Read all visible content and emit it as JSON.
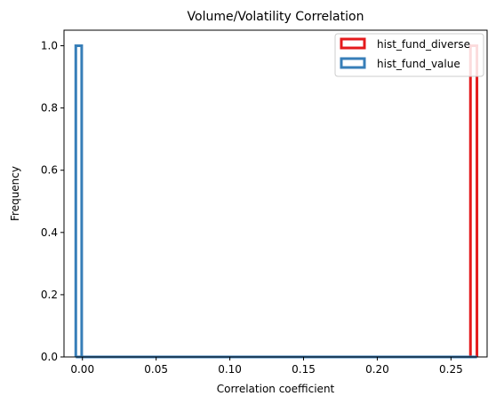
{
  "chart_data": {
    "type": "histogram",
    "title": "Volume/Volatility Correlation",
    "xlabel": "Correlation coefficient",
    "ylabel": "Frequency",
    "xlim": [
      -0.0125,
      0.2745
    ],
    "ylim": [
      0,
      1.05
    ],
    "xticks": [
      "0.00",
      "0.05",
      "0.10",
      "0.15",
      "0.20",
      "0.25"
    ],
    "yticks": [
      "0.0",
      "0.2",
      "0.4",
      "0.6",
      "0.8",
      "1.0"
    ],
    "legend_position": "upper right",
    "series": [
      {
        "name": "hist_fund_diverse",
        "color": "#e41a1c",
        "bins": [
          {
            "x0": 0.2632,
            "x1": 0.2676,
            "value": 1
          }
        ],
        "baseline_range": [
          0.2632,
          0.2676
        ]
      },
      {
        "name": "hist_fund_value",
        "color": "#377eb8",
        "bins": [
          {
            "x0": -0.0045,
            "x1": -0.0005,
            "value": 1
          }
        ],
        "baseline_range": [
          -0.0045,
          0.2676
        ]
      }
    ]
  }
}
